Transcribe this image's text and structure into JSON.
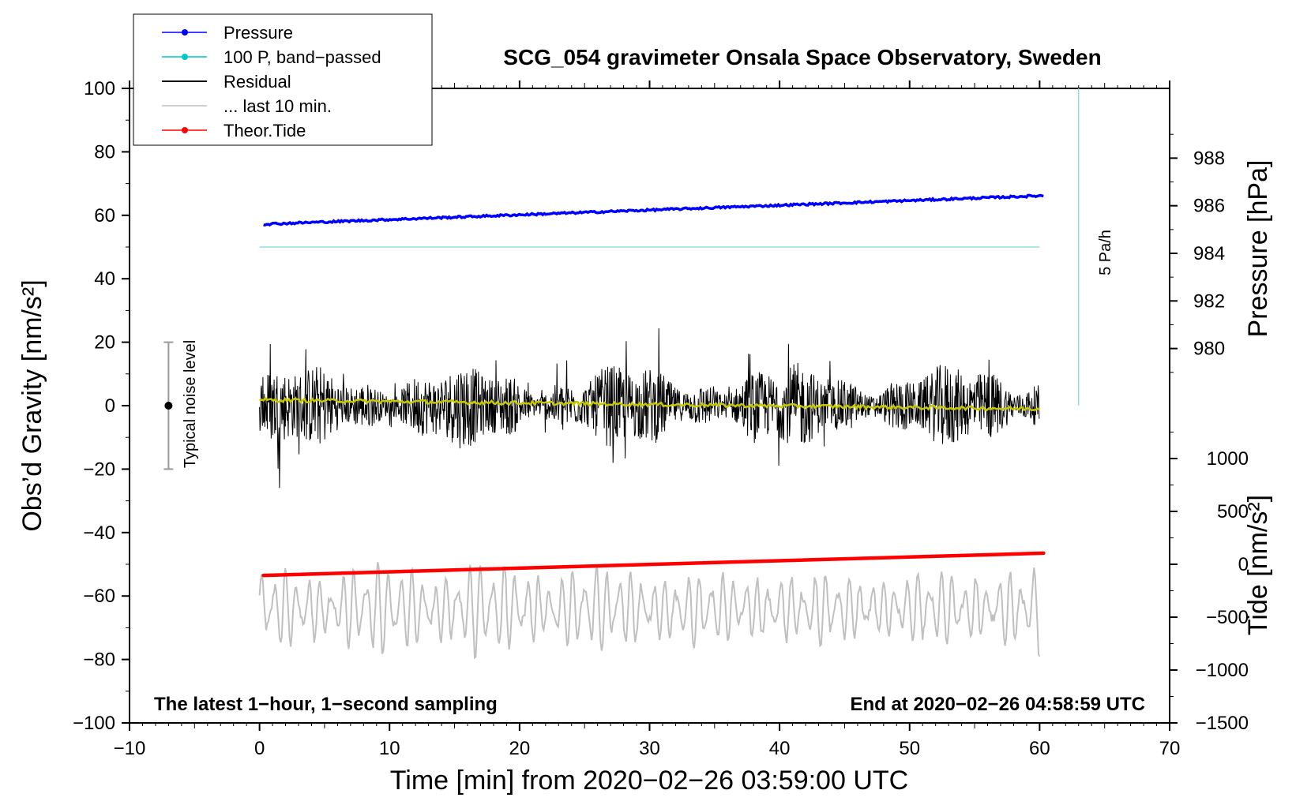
{
  "chart_data": {
    "type": "line",
    "title": "SCG_054 gravimeter Onsala Space Observatory, Sweden",
    "xlabel": "Time [min] from 2020−02−26 03:59:00 UTC",
    "ylabel_left": "Obs’d Gravity [nm/s²]",
    "ylabel_right_top": "Pressure [hPa]",
    "ylabel_right_bottom": "Tide [nm/s²]",
    "footer_left": "The latest 1−hour, 1−second sampling",
    "footer_right": "End at 2020−02−26 04:58:59 UTC",
    "xlim": [
      -10,
      70
    ],
    "ylim": [
      -100,
      100
    ],
    "x_ticks": [
      -10,
      0,
      10,
      20,
      30,
      40,
      50,
      60,
      70
    ],
    "x_tick_labels": [
      "−10",
      "0",
      "10",
      "20",
      "30",
      "40",
      "50",
      "60",
      "70"
    ],
    "y_ticks": [
      -100,
      -80,
      -60,
      -40,
      -20,
      0,
      20,
      40,
      60,
      80,
      100
    ],
    "y_tick_labels": [
      "−100",
      "−80",
      "−60",
      "−40",
      "−20",
      "0",
      "20",
      "40",
      "60",
      "80",
      "100"
    ],
    "pressure_axis": {
      "ticks": [
        980,
        982,
        984,
        986,
        988
      ],
      "tick_labels": [
        "980",
        "982",
        "984",
        "986",
        "988"
      ],
      "hpa_at_y0": 977.6,
      "hpa_per_y_unit": 0.1333
    },
    "tide_axis": {
      "ticks": [
        -1500,
        -1000,
        -500,
        0,
        500,
        1000
      ],
      "tick_labels": [
        "−1500",
        "−1000",
        "−500",
        "0",
        "500",
        "1000"
      ],
      "y_at_zero": -50,
      "y_per_unit": 0.03333
    },
    "legend": [
      {
        "label": "Pressure",
        "color": "#0000ff",
        "marker": true
      },
      {
        "label": "100 P, band−passed",
        "color": "#00c8c8",
        "marker": true
      },
      {
        "label": "Residual",
        "color": "#000000",
        "marker": false
      },
      {
        "label": "... last 10 min.",
        "color": "#c0c0c0",
        "marker": false
      },
      {
        "label": "Theor.Tide",
        "color": "#ff0000",
        "marker": true
      }
    ],
    "series": [
      {
        "name": "Pressure",
        "color": "#0000ff",
        "start": [
          0.3,
          57.2
        ],
        "end": [
          60.3,
          66.2
        ],
        "noise": 0.6
      },
      {
        "name": "100 P, band-passed",
        "color": "#8fe0e0",
        "start": [
          0,
          50
        ],
        "end": [
          60,
          50
        ]
      },
      {
        "name": "Residual",
        "color": "#000000",
        "x_start": 0,
        "x_end": 60,
        "amplitude": 12
      },
      {
        "name": "Residual smoothed",
        "color": "#c8c800",
        "start": [
          0,
          1.8
        ],
        "end": [
          60,
          -1.0
        ]
      },
      {
        "name": "... last 10 min.",
        "color": "#c0c0c0",
        "x_start": 0,
        "x_end": 60,
        "center": -64,
        "amplitude": 13
      },
      {
        "name": "Theor.Tide",
        "color": "#ff0000",
        "start": [
          0.3,
          -53.5
        ],
        "end": [
          60.3,
          -46.5
        ]
      }
    ],
    "noise_bar": {
      "label": "Typical noise level",
      "x": -7,
      "center": 0,
      "low": -20,
      "high": 20
    },
    "scale_bar": {
      "label": "5 Pa/h",
      "x": 63,
      "y_bottom": 0,
      "y_top": 100
    }
  }
}
